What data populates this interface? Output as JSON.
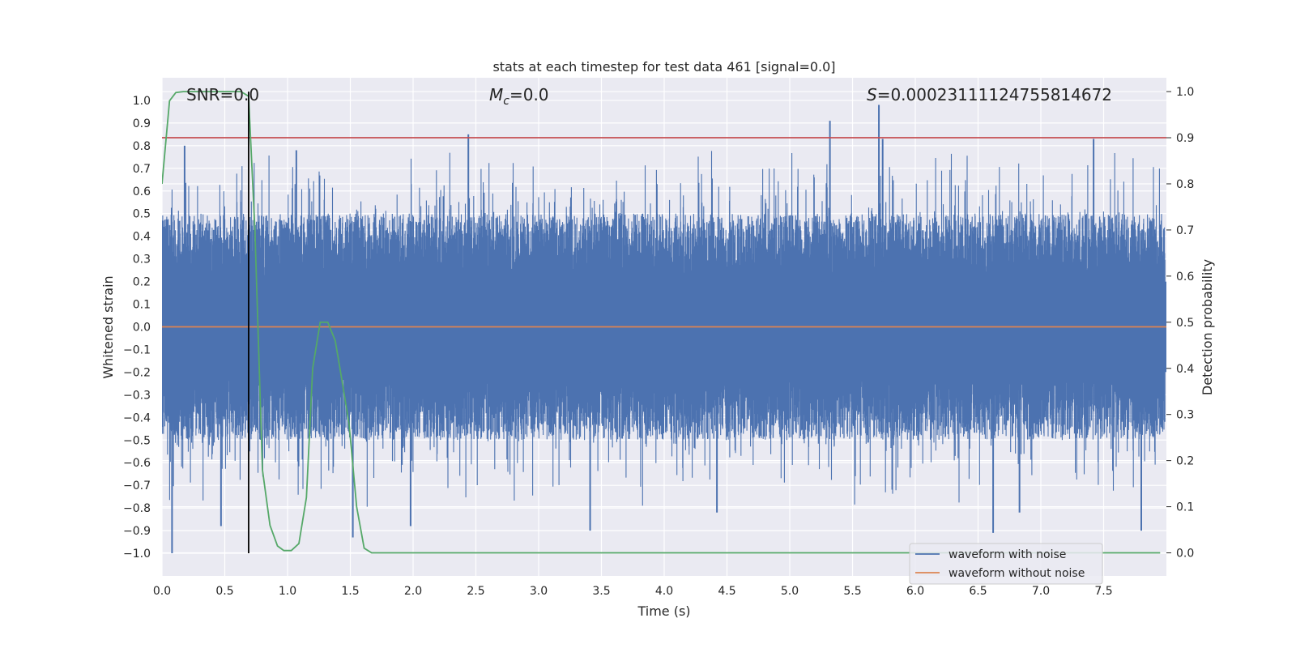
{
  "chart_data": {
    "type": "line",
    "title": "stats at each timestep for test data 461 [signal=0.0]",
    "xlabel": "Time (s)",
    "ylabel": "Whitened strain",
    "y2label": "Detection probability",
    "xlim": [
      0.0,
      8.0
    ],
    "ylim": [
      -1.1,
      1.1
    ],
    "y2lim": [
      -0.05,
      1.03
    ],
    "x_ticks": [
      "0.0",
      "0.5",
      "1.0",
      "1.5",
      "2.0",
      "2.5",
      "3.0",
      "3.5",
      "4.0",
      "4.5",
      "5.0",
      "5.5",
      "6.0",
      "6.5",
      "7.0",
      "7.5"
    ],
    "y_ticks": [
      "1.0",
      "0.9",
      "0.8",
      "0.7",
      "0.6",
      "0.5",
      "0.4",
      "0.3",
      "0.2",
      "0.1",
      "0.0",
      "−0.1",
      "−0.2",
      "−0.3",
      "−0.4",
      "−0.5",
      "−0.6",
      "−0.7",
      "−0.8",
      "−0.9",
      "−1.0"
    ],
    "y2_ticks": [
      "1.0",
      "0.9",
      "0.8",
      "0.7",
      "0.6",
      "0.5",
      "0.4",
      "0.3",
      "0.2",
      "0.1",
      "0.0"
    ],
    "annotations": {
      "snr": "SNR=0.0",
      "mc_symbol": "M",
      "mc_sub": "c",
      "mc_value": "=0.0",
      "s_symbol": "S",
      "s_value": "=0.00023111124755814672"
    },
    "threshold_probability": 0.9,
    "marker_time": 0.69,
    "legend": [
      "waveform with noise",
      "waveform without noise"
    ],
    "legend_position": "lower-right",
    "series": [
      {
        "name": "waveform with noise",
        "color": "#4c72b0",
        "description": "dense noise samples over 0–8 s, mostly within ±0.6, peaks up to ~0.98 and down to ~-1.0",
        "peaks": [
          {
            "x": 0.08,
            "y": -1.0
          },
          {
            "x": 0.18,
            "y": 0.8
          },
          {
            "x": 0.47,
            "y": -0.88
          },
          {
            "x": 1.07,
            "y": 0.78
          },
          {
            "x": 1.52,
            "y": -0.93
          },
          {
            "x": 1.98,
            "y": -0.88
          },
          {
            "x": 2.44,
            "y": 0.85
          },
          {
            "x": 3.41,
            "y": -0.9
          },
          {
            "x": 4.42,
            "y": -0.82
          },
          {
            "x": 5.32,
            "y": 0.91
          },
          {
            "x": 5.71,
            "y": 0.98
          },
          {
            "x": 5.74,
            "y": 0.83
          },
          {
            "x": 6.62,
            "y": -0.91
          },
          {
            "x": 6.83,
            "y": -0.82
          },
          {
            "x": 7.42,
            "y": 0.83
          },
          {
            "x": 7.8,
            "y": -0.9
          }
        ]
      },
      {
        "name": "waveform without noise",
        "color": "#dd8452",
        "x": [
          0.0,
          8.0
        ],
        "y": [
          0.0,
          0.0
        ]
      },
      {
        "name": "detection probability",
        "axis": "right",
        "color": "#55a868",
        "x": [
          0.0,
          0.06,
          0.11,
          0.17,
          0.23,
          0.29,
          0.34,
          0.4,
          0.46,
          0.52,
          0.57,
          0.63,
          0.69,
          0.74,
          0.8,
          0.86,
          0.92,
          0.97,
          1.03,
          1.09,
          1.15,
          1.2,
          1.26,
          1.32,
          1.38,
          1.43,
          1.49,
          1.55,
          1.61,
          1.67,
          1.72,
          2.0,
          3.0,
          4.0,
          5.0,
          6.0,
          7.0,
          7.95
        ],
        "y": [
          0.8,
          0.98,
          0.998,
          1.0,
          1.0,
          1.0,
          1.0,
          1.0,
          1.0,
          1.0,
          1.0,
          1.0,
          0.99,
          0.7,
          0.18,
          0.06,
          0.015,
          0.005,
          0.005,
          0.02,
          0.12,
          0.4,
          0.5,
          0.5,
          0.46,
          0.38,
          0.28,
          0.1,
          0.01,
          0.0,
          0.0,
          0.0,
          0.0,
          0.0,
          0.0,
          0.0,
          0.0,
          0.0
        ]
      }
    ]
  }
}
